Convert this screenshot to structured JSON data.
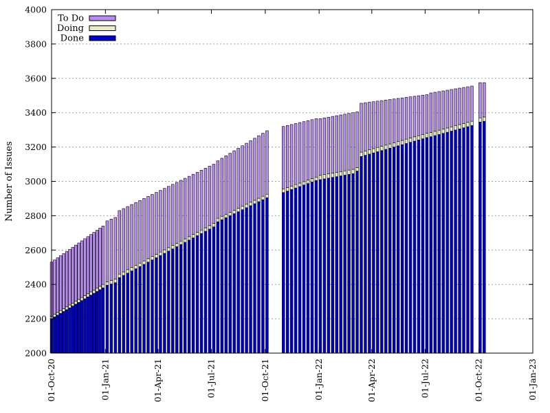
{
  "chart_data": {
    "type": "bar",
    "stacked": true,
    "ylabel": "Number of Issues",
    "ylim": [
      2000,
      4000
    ],
    "yticks": [
      2000,
      2200,
      2400,
      2600,
      2800,
      3000,
      3200,
      3400,
      3600,
      3800,
      4000
    ],
    "xlim": [
      "2020-10-01",
      "2023-01-01"
    ],
    "xticks": [
      {
        "date": "2020-10-01",
        "label": "01-Oct-20"
      },
      {
        "date": "2021-01-01",
        "label": "01-Jan-21"
      },
      {
        "date": "2021-04-01",
        "label": "01-Apr-21"
      },
      {
        "date": "2021-07-01",
        "label": "01-Jul-21"
      },
      {
        "date": "2021-10-01",
        "label": "01-Oct-21"
      },
      {
        "date": "2022-01-01",
        "label": "01-Jan-22"
      },
      {
        "date": "2022-04-01",
        "label": "01-Apr-22"
      },
      {
        "date": "2022-07-01",
        "label": "01-Jul-22"
      },
      {
        "date": "2022-10-01",
        "label": "01-Oct-22"
      },
      {
        "date": "2023-01-01",
        "label": "01-Jan-23"
      }
    ],
    "grid": {
      "horizontal": true,
      "vertical": false
    },
    "legend": {
      "position": "top-left",
      "entries": [
        {
          "name": "To Do",
          "color": "#b98cf0"
        },
        {
          "name": "Doing",
          "color": "#ececc8"
        },
        {
          "name": "Done",
          "color": "#0000cc"
        }
      ]
    },
    "segments": [
      {
        "start": "2020-10-01",
        "end": "2020-12-28",
        "count": 18,
        "done": [
          2200,
          2380
        ],
        "doing": [
          15,
          20
        ],
        "total": [
          2530,
          2740
        ]
      },
      {
        "start": "2021-01-04",
        "end": "2021-01-18",
        "count": 3,
        "done": [
          2395,
          2410
        ],
        "doing": [
          20,
          20
        ],
        "total": [
          2770,
          2790
        ]
      },
      {
        "start": "2021-01-25",
        "end": "2021-07-05",
        "count": 24,
        "done": [
          2440,
          2735
        ],
        "doing": [
          20,
          20
        ],
        "total": [
          2830,
          3100
        ]
      },
      {
        "start": "2021-07-12",
        "end": "2021-10-04",
        "count": 13,
        "done": [
          2765,
          2905
        ],
        "doing": [
          20,
          20
        ],
        "total": [
          3120,
          3295
        ]
      },
      {
        "start": "2021-11-01",
        "end": "2021-12-27",
        "count": 9,
        "done": [
          2935,
          3005
        ],
        "doing": [
          20,
          20
        ],
        "total": [
          3320,
          3365
        ]
      },
      {
        "start": "2022-01-03",
        "end": "2022-02-28",
        "count": 9,
        "done": [
          3010,
          3045
        ],
        "doing": [
          25,
          25
        ],
        "total": [
          3365,
          3400
        ]
      },
      {
        "start": "2022-03-07",
        "end": "2022-03-07",
        "count": 1,
        "done": [
          3060,
          3060
        ],
        "doing": [
          20,
          20
        ],
        "total": [
          3405,
          3405
        ]
      },
      {
        "start": "2022-03-14",
        "end": "2022-07-04",
        "count": 17,
        "done": [
          3145,
          3255
        ],
        "doing": [
          25,
          25
        ],
        "total": [
          3455,
          3505
        ]
      },
      {
        "start": "2022-07-11",
        "end": "2022-09-19",
        "count": 11,
        "done": [
          3260,
          3325
        ],
        "doing": [
          25,
          25
        ],
        "total": [
          3515,
          3555
        ]
      },
      {
        "start": "2022-10-03",
        "end": "2022-10-10",
        "count": 2,
        "done": [
          3345,
          3350
        ],
        "doing": [
          25,
          25
        ],
        "total": [
          3575,
          3575
        ]
      }
    ]
  }
}
